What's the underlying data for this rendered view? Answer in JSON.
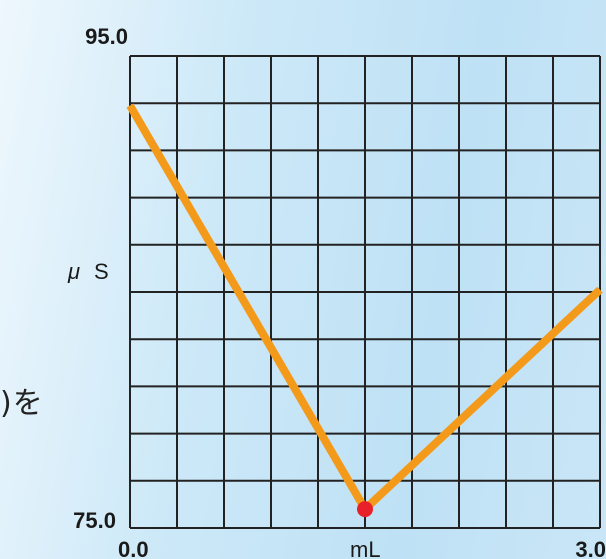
{
  "background_text": ")を",
  "chart_data": {
    "type": "line",
    "title": "",
    "xlabel": "mL",
    "ylabel_symbol": "μ",
    "ylabel_unit": "S",
    "xlim": [
      0.0,
      3.0
    ],
    "ylim": [
      75.0,
      95.0
    ],
    "x_tick_labels": [
      "0.0",
      "3.0"
    ],
    "y_tick_labels": [
      "95.0",
      "75.0"
    ],
    "grid": true,
    "grid_divisions_x": 10,
    "grid_divisions_y": 10,
    "series": [
      {
        "x": [
          0.0,
          1.5,
          3.0
        ],
        "y": [
          92.9,
          75.8,
          85.1
        ],
        "color": "#f39a1a"
      }
    ],
    "marker": {
      "x": 1.5,
      "y": 75.8,
      "color": "#e8202a"
    }
  }
}
